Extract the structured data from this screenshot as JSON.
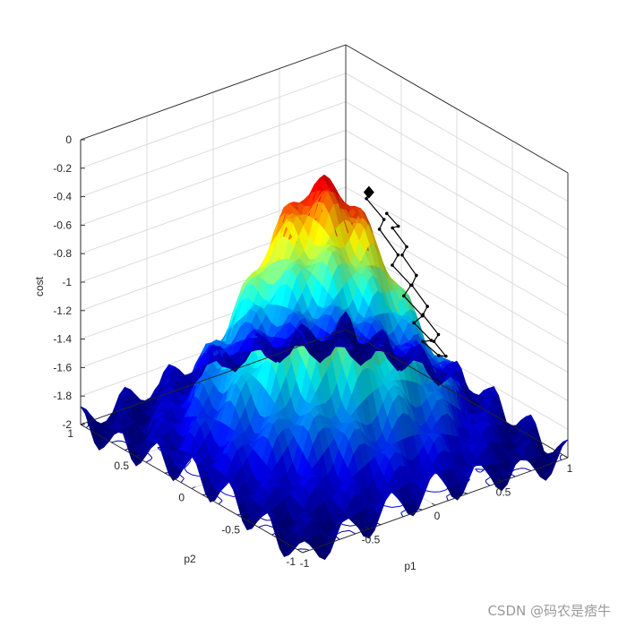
{
  "chart_data": {
    "type": "surface3d",
    "xlabel": "p1",
    "ylabel": "p2",
    "zlabel": "cost",
    "xlim": [
      -1,
      1
    ],
    "ylim": [
      -1,
      1
    ],
    "zlim": [
      -2,
      0
    ],
    "x_ticks": [
      "-1",
      "-0.5",
      "0",
      "0.5",
      "1"
    ],
    "y_ticks": [
      "-1",
      "-0.5",
      "0",
      "0.5",
      "1"
    ],
    "z_ticks": [
      "-2",
      "-1.8",
      "-1.6",
      "-1.4",
      "-1.2",
      "-1",
      "-0.8",
      "-0.6",
      "-0.4",
      "-0.2",
      "0"
    ],
    "surface": "cost(p1,p2) ≈ -2 + 1.75·exp(-(p1²+p2²)/0.36) + 0.12·cos(6π p1)·cos(6π p2); minimum -2 at the corners, maximum about -0.2 near the center",
    "colormap": "jet",
    "grid": true,
    "floor_contours": true,
    "trajectory": {
      "color": "#000000",
      "end_marker": "diamond",
      "points": [
        [
          0.32,
          -0.02,
          -0.35
        ],
        [
          0.36,
          0.05,
          -0.44
        ],
        [
          0.4,
          -0.06,
          -0.55
        ],
        [
          0.45,
          0.04,
          -0.68
        ],
        [
          0.49,
          -0.08,
          -0.82
        ],
        [
          0.53,
          0.02,
          -0.95
        ],
        [
          0.57,
          -0.1,
          -1.05
        ],
        [
          0.6,
          0.0,
          -1.18
        ],
        [
          0.64,
          -0.12,
          -1.28
        ],
        [
          0.66,
          -0.02,
          -1.38
        ],
        [
          0.69,
          -0.14,
          -1.46
        ],
        [
          0.71,
          -0.04,
          -1.52
        ],
        [
          0.73,
          -0.16,
          -1.57
        ],
        [
          0.7,
          -0.26,
          -1.52
        ],
        [
          0.66,
          -0.2,
          -1.43
        ],
        [
          0.61,
          -0.3,
          -1.32
        ],
        [
          0.56,
          -0.22,
          -1.2
        ],
        [
          0.51,
          -0.32,
          -1.08
        ],
        [
          0.46,
          -0.24,
          -0.95
        ],
        [
          0.41,
          -0.34,
          -0.82
        ],
        [
          0.37,
          -0.26,
          -0.7
        ],
        [
          0.32,
          -0.36,
          -0.58
        ],
        [
          0.28,
          -0.28,
          -0.47
        ],
        [
          0.24,
          -0.38,
          -0.4
        ],
        [
          0.22,
          -0.3,
          -0.34
        ]
      ]
    }
  },
  "watermark": "CSDN @码农是痞牛"
}
